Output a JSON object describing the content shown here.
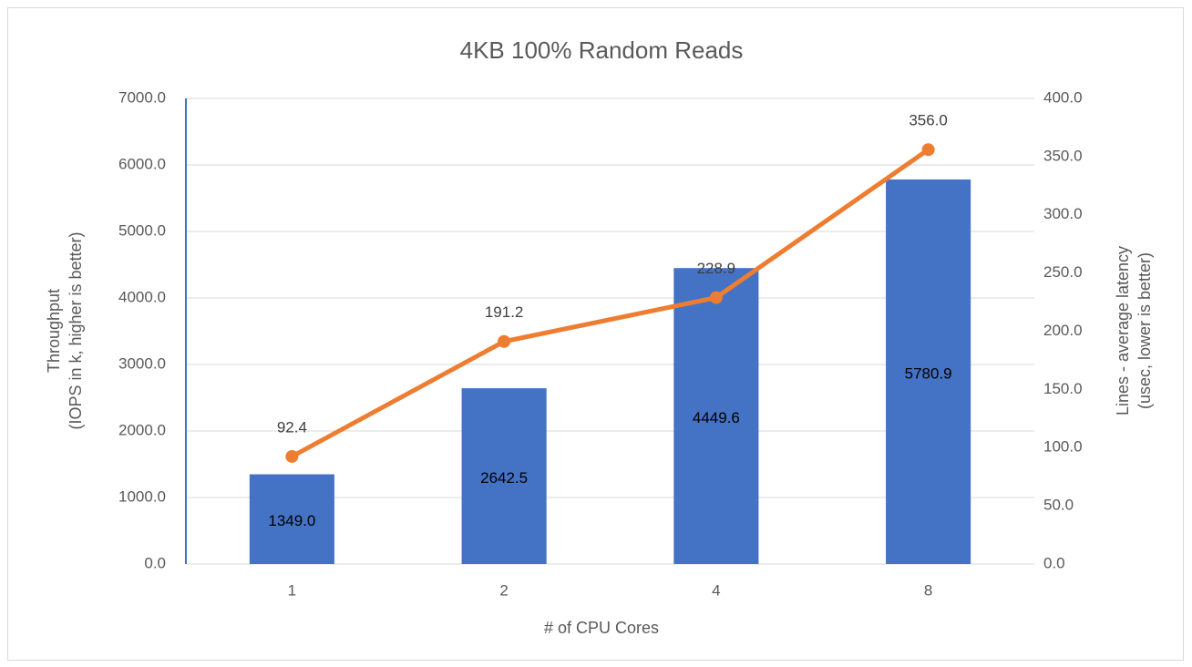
{
  "chart_data": {
    "type": "combo",
    "title": "4KB 100% Random Reads",
    "x_label": "# of CPU Cores",
    "y_label": [
      "Throughput",
      "(IOPS in k, higher is better)"
    ],
    "y2_label": [
      "Lines - average latency",
      "(usec, lower is better)"
    ],
    "categories": [
      "1",
      "2",
      "4",
      "8"
    ],
    "series": [
      {
        "type": "bar",
        "color": "#4472c4",
        "values": [
          1349.0,
          2642.5,
          4449.6,
          5780.9
        ],
        "value_labels": [
          "1349.0",
          "2642.5",
          "4449.6",
          "5780.9"
        ]
      },
      {
        "type": "line",
        "axis": "y2",
        "color": "#ed7d31",
        "values": [
          92.4,
          191.2,
          228.9,
          356.0
        ],
        "value_labels": [
          "92.4",
          "191.2",
          "228.9",
          "356.0"
        ]
      }
    ],
    "ylim": [
      0,
      7000
    ],
    "yticks": [
      {
        "value": 0,
        "label": "0.0"
      },
      {
        "value": 1000,
        "label": "1000.0"
      },
      {
        "value": 2000,
        "label": "2000.0"
      },
      {
        "value": 3000,
        "label": "3000.0"
      },
      {
        "value": 4000,
        "label": "4000.0"
      },
      {
        "value": 5000,
        "label": "5000.0"
      },
      {
        "value": 6000,
        "label": "6000.0"
      },
      {
        "value": 7000,
        "label": "7000.0"
      }
    ],
    "y2lim": [
      0,
      400
    ],
    "y2ticks": [
      {
        "value": 0,
        "label": "0.0"
      },
      {
        "value": 50,
        "label": "50.0"
      },
      {
        "value": 100,
        "label": "100.0"
      },
      {
        "value": 150,
        "label": "150.0"
      },
      {
        "value": 200,
        "label": "200.0"
      },
      {
        "value": 250,
        "label": "250.0"
      },
      {
        "value": 300,
        "label": "300.0"
      },
      {
        "value": 350,
        "label": "350.0"
      },
      {
        "value": 400,
        "label": "400.0"
      }
    ],
    "grid": true
  }
}
